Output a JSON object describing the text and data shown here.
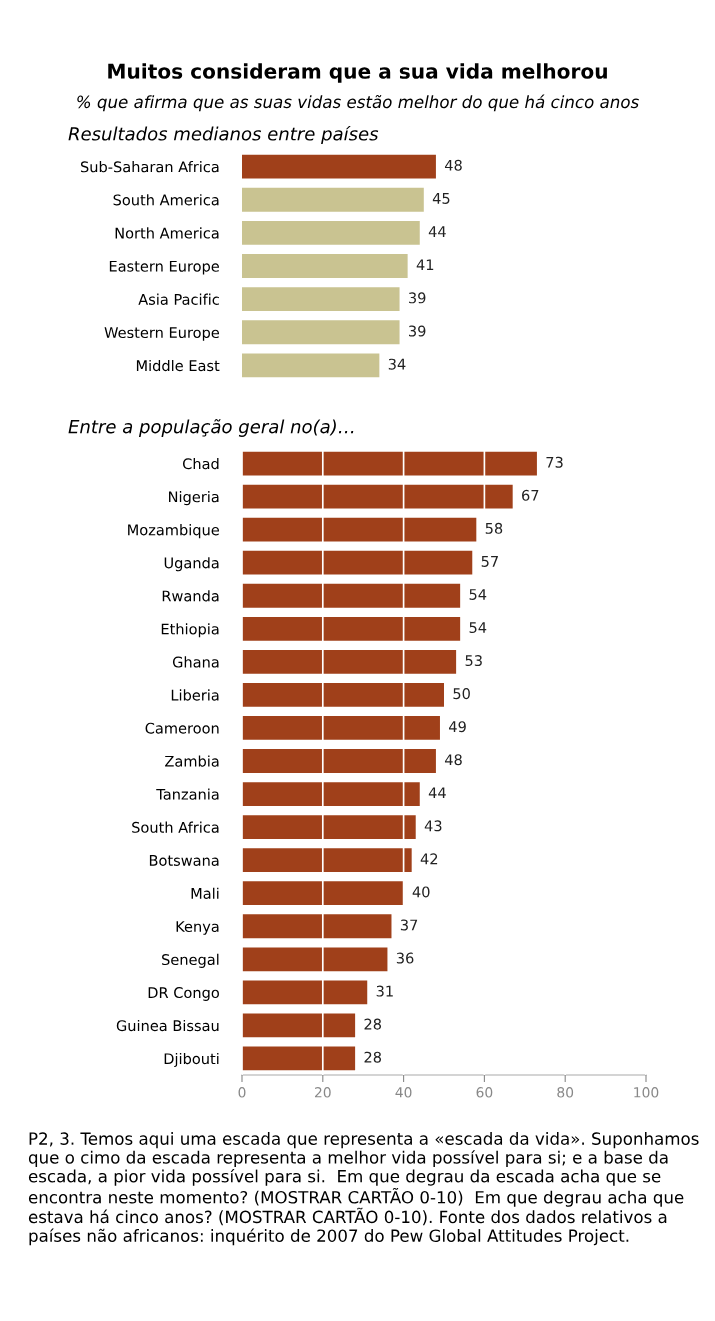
{
  "chart_data": [
    {
      "type": "bar",
      "orientation": "horizontal",
      "title": "Muitos consideram que a sua vida melhorou",
      "subtitle": "% que afirma que as suas vidas estão melhor do que há cinco anos",
      "annotations": [
        "Resultados medianos entre países"
      ],
      "categories": [
        "Sub-Saharan Africa",
        "South America",
        "North America",
        "Eastern Europe",
        "Asia Pacific",
        "Western Europe",
        "Middle East"
      ],
      "values": [
        48,
        45,
        44,
        41,
        39,
        39,
        34
      ],
      "colors": [
        "#a0401a",
        "#c9c391",
        "#c9c391",
        "#c9c391",
        "#c9c391",
        "#c9c391",
        "#c9c391"
      ],
      "xlim": [
        0,
        100
      ],
      "tick_labels": "y",
      "data_labels": true,
      "grid": false,
      "legend": false
    },
    {
      "type": "bar",
      "orientation": "horizontal",
      "title": "Entre a população geral no(a)…",
      "annotations": [
        "P2, 3. Temos aqui uma escada que representa a «escada da vida». Suponhamos que o cimo da escada representa a melhor vida possível para si; e a base da escada, a pior vida possível para si.  Em que degrau da escada acha que se encontra neste momento? (MOSTRAR CARTÃO 0-10)  Em que degrau acha que estava há cinco anos? (MOSTRAR CARTÃO 0-10). Fonte dos dados relativos a países não africanos: inquérito de 2007 do Pew Global Attitudes Project."
      ],
      "categories": [
        "Chad",
        "Nigeria",
        "Mozambique",
        "Uganda",
        "Rwanda",
        "Ethiopia",
        "Ghana",
        "Liberia",
        "Cameroon",
        "Zambia",
        "Tanzania",
        "South Africa",
        "Botswana",
        "Mali",
        "Kenya",
        "Senegal",
        "DR Congo",
        "Guinea Bissau",
        "Djibouti"
      ],
      "values": [
        73,
        67,
        58,
        57,
        54,
        54,
        53,
        50,
        49,
        48,
        44,
        43,
        42,
        40,
        37,
        36,
        31,
        28,
        28
      ],
      "colors": [
        "#a0401a",
        "#a0401a",
        "#a0401a",
        "#a0401a",
        "#a0401a",
        "#a0401a",
        "#a0401a",
        "#a0401a",
        "#a0401a",
        "#a0401a",
        "#a0401a",
        "#a0401a",
        "#a0401a",
        "#a0401a",
        "#a0401a",
        "#a0401a",
        "#a0401a",
        "#a0401a",
        "#a0401a"
      ],
      "xlim": [
        0,
        100
      ],
      "xticks": [
        0,
        20,
        40,
        60,
        80,
        100
      ],
      "data_labels": true,
      "grid": "x",
      "legend": false
    }
  ]
}
